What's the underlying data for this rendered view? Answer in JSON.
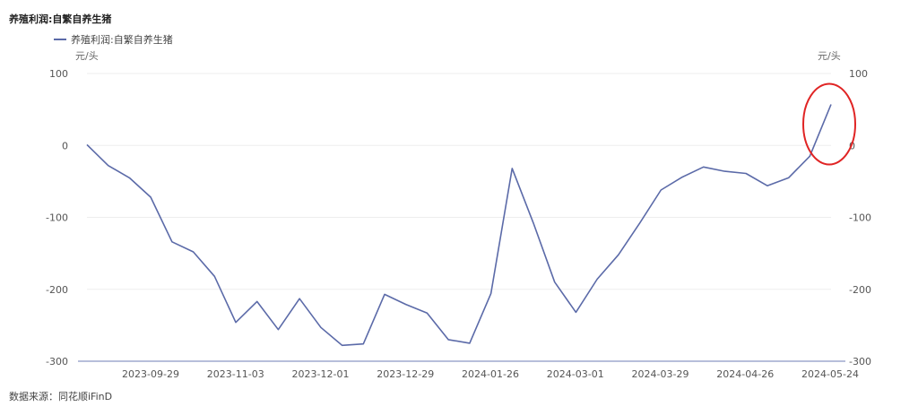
{
  "chart_data": {
    "type": "line",
    "title": "养殖利润:自繁自养生猪",
    "y_unit_left": "元/头",
    "y_unit_right": "元/头",
    "ylim": [
      -300,
      100
    ],
    "y_ticks": [
      100,
      0,
      -100,
      -200,
      -300
    ],
    "grid": true,
    "legend_position": "top-left",
    "x_tick_labels": [
      "2023-09-29",
      "2023-11-03",
      "2023-12-01",
      "2023-12-29",
      "2024-01-26",
      "2024-03-01",
      "2024-03-29",
      "2024-04-26",
      "2024-05-24"
    ],
    "series": [
      {
        "name": "养殖利润:自繁自养生猪",
        "color": "#5b6aa8",
        "values": [
          1,
          -28,
          -45,
          -72,
          -134,
          -148,
          -182,
          -246,
          -217,
          -256,
          -213,
          -253,
          -278,
          -276,
          -207,
          -221,
          -233,
          -270,
          -275,
          -206,
          -32,
          -108,
          -190,
          -232,
          -186,
          -152,
          -108,
          -62,
          -44,
          -30,
          -36,
          -39,
          -56,
          -45,
          -15,
          57
        ]
      }
    ],
    "annotation": {
      "shape": "ellipse",
      "color": "#e02424",
      "target": "last-point"
    }
  },
  "footer": {
    "source": "数据来源：同花顺iFinD"
  }
}
